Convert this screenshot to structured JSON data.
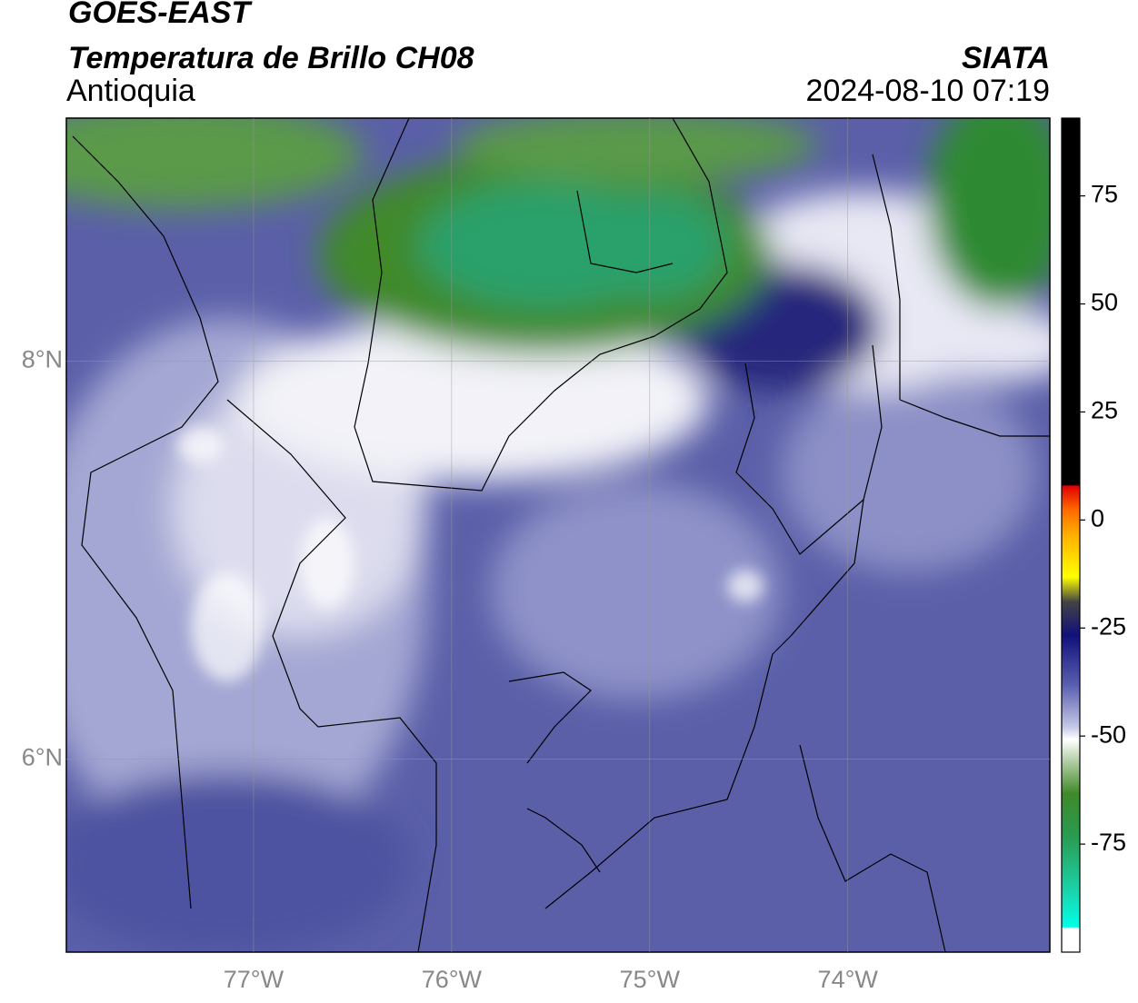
{
  "header": {
    "title": "GOES-EAST",
    "subtitle": "Temperatura de Brillo CH08",
    "region": "Antioquia",
    "source": "SIATA",
    "datetime": "2024-08-10 07:19"
  },
  "map": {
    "xlim": [
      -77.945,
      -72.98
    ],
    "ylim": [
      5.03,
      9.22
    ],
    "xticks": [
      {
        "value": -77,
        "label": "77°W"
      },
      {
        "value": -76,
        "label": "76°W"
      },
      {
        "value": -75,
        "label": "75°W"
      },
      {
        "value": -74,
        "label": "74°W"
      }
    ],
    "yticks": [
      {
        "value": 8,
        "label": "8°N"
      },
      {
        "value": 6,
        "label": "6°N"
      }
    ],
    "grid": true
  },
  "colorbar": {
    "lim": [
      -100,
      93
    ],
    "ticks": [
      75,
      50,
      25,
      0,
      -25,
      -50,
      -75
    ]
  }
}
